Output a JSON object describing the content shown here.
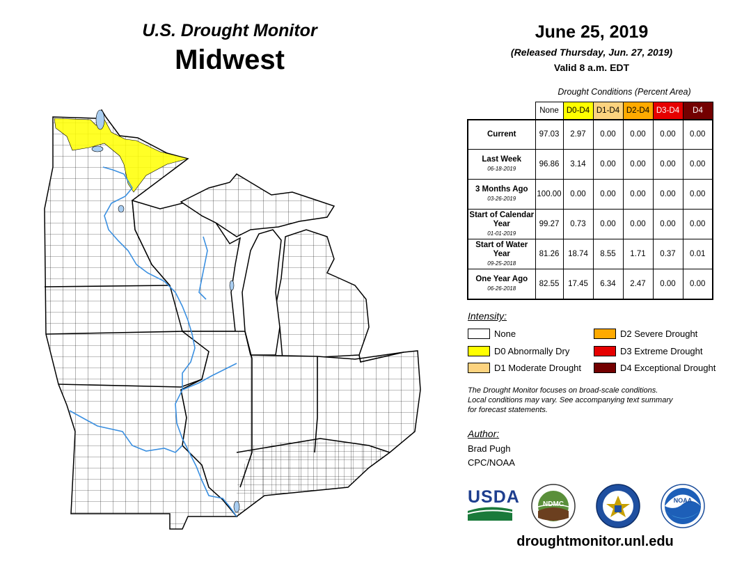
{
  "header": {
    "title_top": "U.S. Drought Monitor",
    "title_region": "Midwest",
    "date": "June 25, 2019",
    "released": "(Released Thursday, Jun. 27, 2019)",
    "valid": "Valid 8 a.m. EDT"
  },
  "conditions": {
    "caption": "Drought Conditions (Percent Area)",
    "columns": [
      "None",
      "D0-D4",
      "D1-D4",
      "D2-D4",
      "D3-D4",
      "D4"
    ],
    "rows": [
      {
        "label": "Current",
        "date": "",
        "values": [
          "97.03",
          "2.97",
          "0.00",
          "0.00",
          "0.00",
          "0.00"
        ]
      },
      {
        "label": "Last Week",
        "date": "06-18-2019",
        "values": [
          "96.86",
          "3.14",
          "0.00",
          "0.00",
          "0.00",
          "0.00"
        ]
      },
      {
        "label": "3 Months Ago",
        "date": "03-26-2019",
        "values": [
          "100.00",
          "0.00",
          "0.00",
          "0.00",
          "0.00",
          "0.00"
        ]
      },
      {
        "label": "Start of Calendar Year",
        "date": "01-01-2019",
        "values": [
          "99.27",
          "0.73",
          "0.00",
          "0.00",
          "0.00",
          "0.00"
        ]
      },
      {
        "label": "Start of Water Year",
        "date": "09-25-2018",
        "values": [
          "81.26",
          "18.74",
          "8.55",
          "1.71",
          "0.37",
          "0.01"
        ]
      },
      {
        "label": "One Year Ago",
        "date": "06-26-2018",
        "values": [
          "82.55",
          "17.45",
          "6.34",
          "2.47",
          "0.00",
          "0.00"
        ]
      }
    ]
  },
  "legend": {
    "title": "Intensity:",
    "items": [
      {
        "label": "None",
        "color": "#ffffff"
      },
      {
        "label": "D0 Abnormally Dry",
        "color": "#ffff00"
      },
      {
        "label": "D1 Moderate Drought",
        "color": "#fcd37f"
      },
      {
        "label": "D2 Severe Drought",
        "color": "#ffaa00"
      },
      {
        "label": "D3 Extreme Drought",
        "color": "#e60000"
      },
      {
        "label": "D4 Exceptional Drought",
        "color": "#730000"
      }
    ]
  },
  "note": {
    "line1": "The Drought Monitor focuses on broad-scale conditions.",
    "line2": "Local conditions may vary. See accompanying text summary",
    "line3": "for forecast statements."
  },
  "author": {
    "title": "Author:",
    "name": "Brad Pugh",
    "org": "CPC/NOAA"
  },
  "logos": {
    "usda": "USDA",
    "ndmc": "NDMC",
    "noaa": "NOAA"
  },
  "footer": {
    "url": "droughtmonitor.unl.edu"
  },
  "map": {
    "colors": {
      "land": "#ffffff",
      "lake": "#a9cdf0",
      "river": "#3a8fe0",
      "abnormally_dry": "#ffff00",
      "county_line": "#000000"
    }
  }
}
